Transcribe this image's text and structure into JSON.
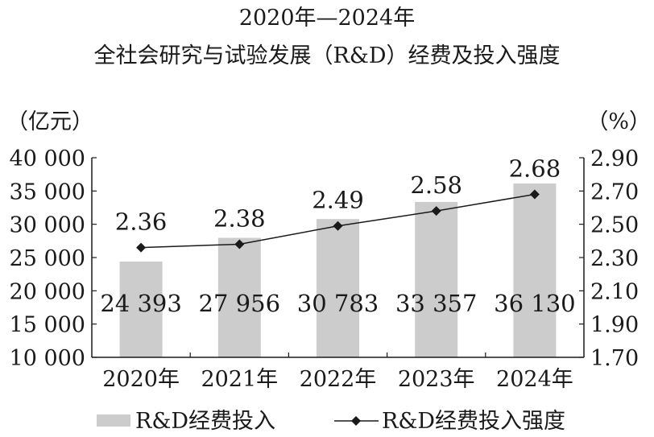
{
  "chart_data": {
    "type": "bar",
    "title": "2020年—2024年",
    "subtitle": "全社会研究与试验发展（R&D）经费及投入强度",
    "y_left_unit": "（亿元）",
    "y_right_unit": "（%）",
    "categories": [
      "2020年",
      "2021年",
      "2022年",
      "2023年",
      "2024年"
    ],
    "ylim_left": [
      10000,
      40000
    ],
    "ylim_right": [
      1.7,
      2.9
    ],
    "yticks_left": [
      "10 000",
      "15 000",
      "20 000",
      "25 000",
      "30 000",
      "35 000",
      "40 000"
    ],
    "yticks_right": [
      "1.70",
      "1.90",
      "2.10",
      "2.30",
      "2.50",
      "2.70",
      "2.90"
    ],
    "grid": false,
    "legend_position": "bottom",
    "series": [
      {
        "name": "R&D经费投入",
        "type": "bar",
        "axis": "left",
        "color": "#cccccc",
        "values": [
          24393,
          27956,
          30783,
          33357,
          36130
        ],
        "labels": [
          "24 393",
          "27 956",
          "30 783",
          "33 357",
          "36 130"
        ]
      },
      {
        "name": "R&D经费投入强度",
        "type": "line",
        "axis": "right",
        "color": "#1a1a1a",
        "values": [
          2.36,
          2.38,
          2.49,
          2.58,
          2.68
        ],
        "labels": [
          "2.36",
          "2.38",
          "2.49",
          "2.58",
          "2.68"
        ]
      }
    ]
  }
}
